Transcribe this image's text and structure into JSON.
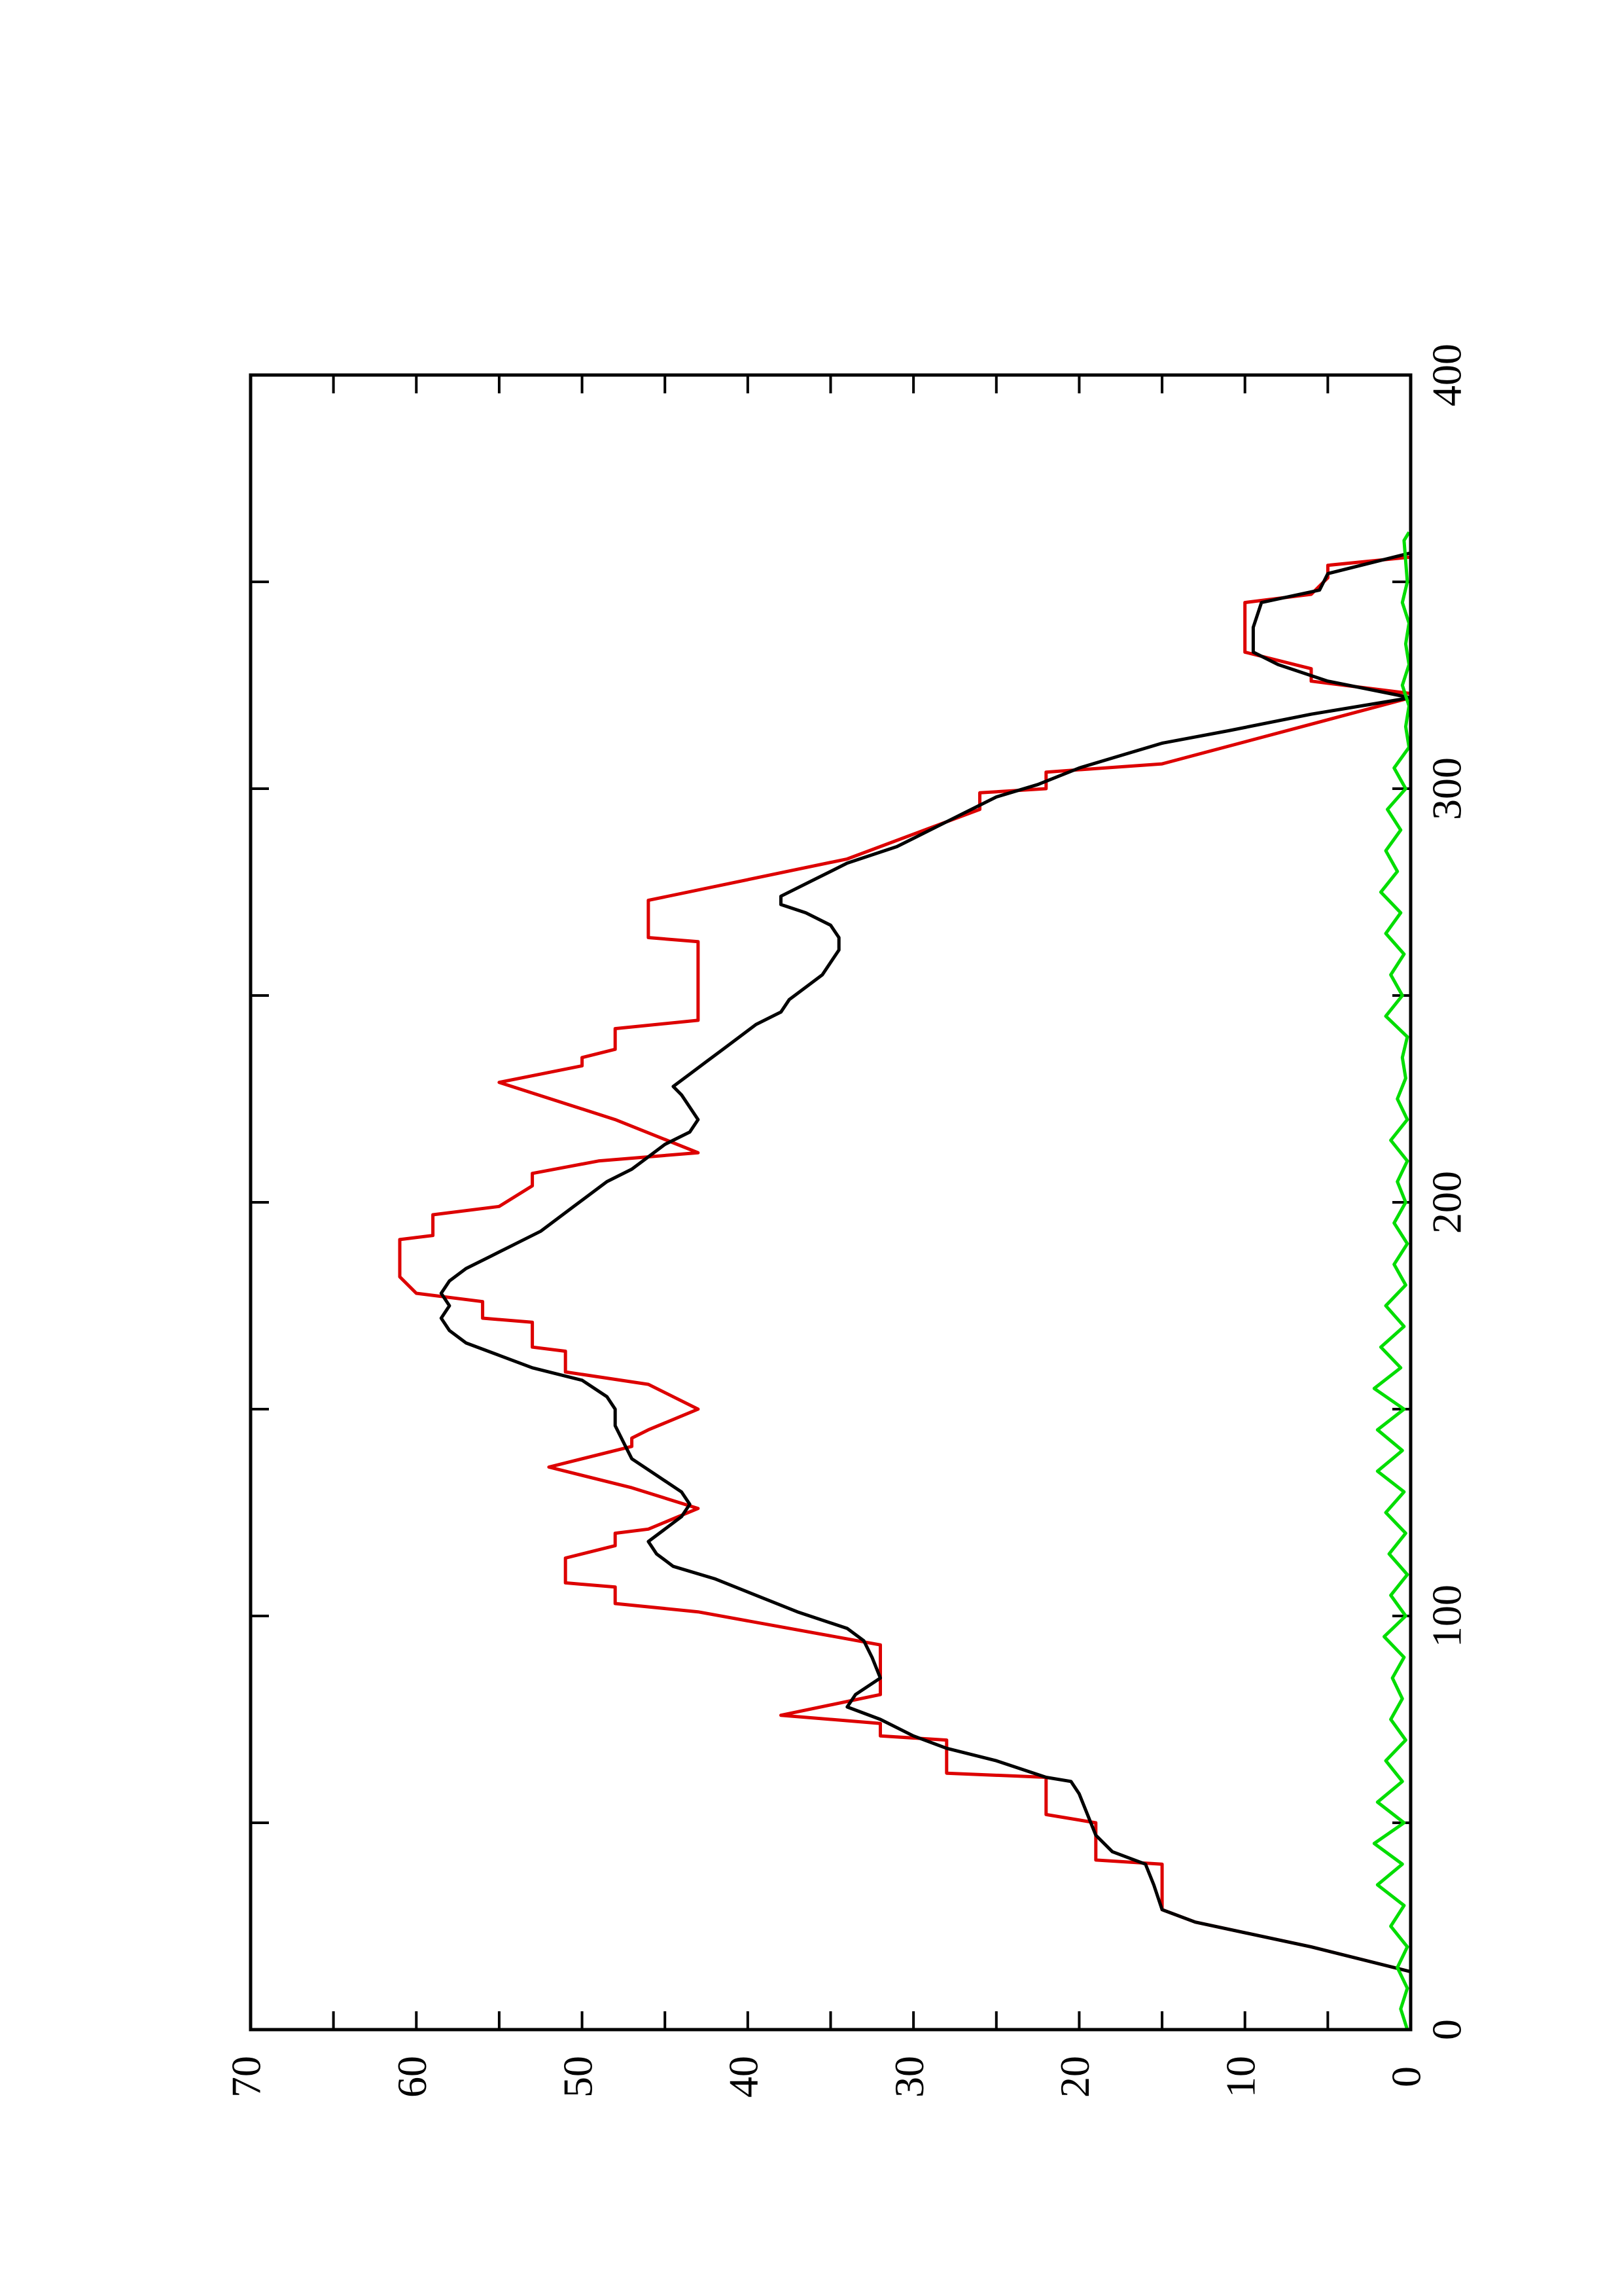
{
  "chart_data": {
    "type": "line",
    "orientation": "rotated-90-ccw",
    "title": "",
    "xlabel": "",
    "ylabel": "",
    "xlim": [
      0,
      400
    ],
    "ylim": [
      0,
      70
    ],
    "x_ticks": [
      0,
      100,
      200,
      300,
      400
    ],
    "x_minor_ticks": [
      50,
      150,
      250,
      350
    ],
    "y_ticks": [
      0,
      10,
      20,
      30,
      40,
      50,
      60,
      70
    ],
    "y_minor_ticks": [
      5,
      15,
      25,
      35,
      45,
      55,
      65
    ],
    "grid": false,
    "legend": "none",
    "series": [
      {
        "color": "#dd0000",
        "style": "step",
        "points": [
          [
            0,
            0
          ],
          [
            14,
            0
          ],
          [
            20,
            6
          ],
          [
            26,
            13
          ],
          [
            29,
            15
          ],
          [
            40,
            15
          ],
          [
            41,
            19
          ],
          [
            50,
            19
          ],
          [
            52,
            22
          ],
          [
            61,
            22
          ],
          [
            62,
            28
          ],
          [
            70,
            28
          ],
          [
            71,
            32
          ],
          [
            74,
            32
          ],
          [
            76,
            38
          ],
          [
            81,
            32
          ],
          [
            93,
            32
          ],
          [
            101,
            43
          ],
          [
            103,
            48
          ],
          [
            107,
            48
          ],
          [
            108,
            51
          ],
          [
            114,
            51
          ],
          [
            117,
            48
          ],
          [
            120,
            48
          ],
          [
            121,
            46
          ],
          [
            126,
            43
          ],
          [
            131,
            47
          ],
          [
            136,
            52
          ],
          [
            141,
            47
          ],
          [
            143,
            47
          ],
          [
            145,
            46
          ],
          [
            150,
            43
          ],
          [
            156,
            46
          ],
          [
            159,
            51
          ],
          [
            164,
            51
          ],
          [
            165,
            53
          ],
          [
            171,
            53
          ],
          [
            172,
            56
          ],
          [
            176,
            56
          ],
          [
            178,
            60
          ],
          [
            182,
            61
          ],
          [
            191,
            61
          ],
          [
            192,
            59
          ],
          [
            197,
            59
          ],
          [
            199,
            55
          ],
          [
            204,
            53
          ],
          [
            207,
            53
          ],
          [
            210,
            49
          ],
          [
            212,
            43
          ],
          [
            220,
            48
          ],
          [
            229,
            55
          ],
          [
            233,
            50
          ],
          [
            235,
            50
          ],
          [
            237,
            48
          ],
          [
            240,
            48
          ],
          [
            242,
            48
          ],
          [
            244,
            43
          ],
          [
            263,
            43
          ],
          [
            264,
            46
          ],
          [
            273,
            46
          ],
          [
            283,
            34
          ],
          [
            295,
            26
          ],
          [
            299,
            26
          ],
          [
            300,
            22
          ],
          [
            301,
            22
          ],
          [
            304,
            22
          ],
          [
            306,
            15
          ],
          [
            322,
            0
          ],
          [
            323,
            0
          ],
          [
            326,
            6
          ],
          [
            329,
            6
          ],
          [
            333,
            10
          ],
          [
            341,
            10
          ],
          [
            343,
            10
          ],
          [
            345,
            10
          ],
          [
            347,
            6
          ],
          [
            351,
            5
          ],
          [
            354,
            5
          ],
          [
            356,
            0
          ],
          [
            362,
            0
          ]
        ]
      },
      {
        "color": "#000000",
        "style": "line",
        "points": [
          [
            0,
            0
          ],
          [
            14,
            0
          ],
          [
            20,
            6
          ],
          [
            26,
            13
          ],
          [
            29,
            15
          ],
          [
            35,
            15.5
          ],
          [
            40,
            16
          ],
          [
            43,
            18
          ],
          [
            47,
            19
          ],
          [
            52,
            19.5
          ],
          [
            57,
            20
          ],
          [
            60,
            20.5
          ],
          [
            61,
            22
          ],
          [
            65,
            25
          ],
          [
            68,
            28
          ],
          [
            71,
            30
          ],
          [
            75,
            32
          ],
          [
            78,
            34
          ],
          [
            81,
            33.5
          ],
          [
            85,
            32
          ],
          [
            90,
            32.5
          ],
          [
            94,
            33
          ],
          [
            97,
            34
          ],
          [
            101,
            37
          ],
          [
            105,
            39.5
          ],
          [
            109,
            42
          ],
          [
            112,
            44.5
          ],
          [
            115,
            45.5
          ],
          [
            118,
            46
          ],
          [
            121,
            45
          ],
          [
            124,
            44
          ],
          [
            127,
            43.5
          ],
          [
            130,
            44
          ],
          [
            134,
            45.5
          ],
          [
            138,
            47
          ],
          [
            142,
            47.5
          ],
          [
            146,
            48
          ],
          [
            150,
            48
          ],
          [
            153,
            48.5
          ],
          [
            157,
            50
          ],
          [
            160,
            53
          ],
          [
            163,
            55
          ],
          [
            166,
            57
          ],
          [
            169,
            58
          ],
          [
            172,
            58.5
          ],
          [
            175,
            58
          ],
          [
            178,
            58.5
          ],
          [
            181,
            58
          ],
          [
            184,
            57
          ],
          [
            187,
            55.5
          ],
          [
            190,
            54
          ],
          [
            193,
            52.5
          ],
          [
            196,
            51.5
          ],
          [
            199,
            50.5
          ],
          [
            202,
            49.5
          ],
          [
            205,
            48.5
          ],
          [
            208,
            47
          ],
          [
            211,
            46
          ],
          [
            214,
            45
          ],
          [
            217,
            43.5
          ],
          [
            220,
            43
          ],
          [
            223,
            43.5
          ],
          [
            226,
            44
          ],
          [
            228,
            44.5
          ],
          [
            231,
            43.5
          ],
          [
            234,
            42.5
          ],
          [
            237,
            41.5
          ],
          [
            240,
            40.5
          ],
          [
            243,
            39.5
          ],
          [
            246,
            38
          ],
          [
            249,
            37.5
          ],
          [
            252,
            36.5
          ],
          [
            255,
            35.5
          ],
          [
            258,
            35
          ],
          [
            261,
            34.5
          ],
          [
            264,
            34.5
          ],
          [
            267,
            35
          ],
          [
            270,
            36.5
          ],
          [
            272,
            38
          ],
          [
            274,
            38
          ],
          [
            278,
            36
          ],
          [
            282,
            34
          ],
          [
            286,
            31
          ],
          [
            290,
            29
          ],
          [
            294,
            27
          ],
          [
            298,
            25
          ],
          [
            301,
            22.5
          ],
          [
            305,
            20
          ],
          [
            308,
            17.5
          ],
          [
            311,
            15
          ],
          [
            314,
            11
          ],
          [
            318,
            6
          ],
          [
            322,
            0
          ],
          [
            326,
            5
          ],
          [
            330,
            8
          ],
          [
            333,
            9.5
          ],
          [
            339,
            9.5
          ],
          [
            345,
            9
          ],
          [
            348,
            5.5
          ],
          [
            352,
            5
          ],
          [
            355,
            2
          ],
          [
            357,
            0
          ],
          [
            362,
            0
          ]
        ]
      },
      {
        "color": "#00dd00",
        "style": "noise",
        "points": [
          [
            0,
            0.2
          ],
          [
            5,
            0.6
          ],
          [
            10,
            0.2
          ],
          [
            15,
            0.8
          ],
          [
            20,
            0.2
          ],
          [
            25,
            1.2
          ],
          [
            30,
            0.4
          ],
          [
            35,
            2.0
          ],
          [
            40,
            0.5
          ],
          [
            45,
            2.2
          ],
          [
            50,
            0.4
          ],
          [
            55,
            2.0
          ],
          [
            60,
            0.5
          ],
          [
            65,
            1.5
          ],
          [
            70,
            0.3
          ],
          [
            75,
            1.2
          ],
          [
            80,
            0.5
          ],
          [
            85,
            1.1
          ],
          [
            90,
            0.4
          ],
          [
            95,
            1.6
          ],
          [
            100,
            0.3
          ],
          [
            105,
            1.2
          ],
          [
            110,
            0.2
          ],
          [
            115,
            1.3
          ],
          [
            120,
            0.3
          ],
          [
            125,
            1.5
          ],
          [
            130,
            0.4
          ],
          [
            135,
            2.0
          ],
          [
            140,
            0.5
          ],
          [
            145,
            2.0
          ],
          [
            150,
            0.4
          ],
          [
            155,
            2.2
          ],
          [
            160,
            0.6
          ],
          [
            165,
            1.8
          ],
          [
            170,
            0.4
          ],
          [
            175,
            1.5
          ],
          [
            180,
            0.3
          ],
          [
            185,
            1.0
          ],
          [
            190,
            0.2
          ],
          [
            195,
            1.0
          ],
          [
            200,
            0.3
          ],
          [
            205,
            0.8
          ],
          [
            210,
            0.2
          ],
          [
            215,
            1.2
          ],
          [
            220,
            0.2
          ],
          [
            225,
            0.8
          ],
          [
            230,
            0.3
          ],
          [
            235,
            0.5
          ],
          [
            240,
            0.2
          ],
          [
            245,
            1.5
          ],
          [
            250,
            0.5
          ],
          [
            255,
            1.2
          ],
          [
            260,
            0.4
          ],
          [
            265,
            1.5
          ],
          [
            270,
            0.6
          ],
          [
            275,
            1.8
          ],
          [
            280,
            0.8
          ],
          [
            285,
            1.5
          ],
          [
            290,
            0.6
          ],
          [
            295,
            1.4
          ],
          [
            300,
            0.3
          ],
          [
            305,
            1.0
          ],
          [
            310,
            0.1
          ],
          [
            315,
            0.3
          ],
          [
            320,
            0.1
          ],
          [
            325,
            0.5
          ],
          [
            330,
            0.1
          ],
          [
            335,
            0.3
          ],
          [
            340,
            0.1
          ],
          [
            345,
            0.5
          ],
          [
            350,
            0.2
          ],
          [
            355,
            0.3
          ],
          [
            360,
            0.4
          ],
          [
            362,
            0.1
          ]
        ]
      }
    ]
  }
}
